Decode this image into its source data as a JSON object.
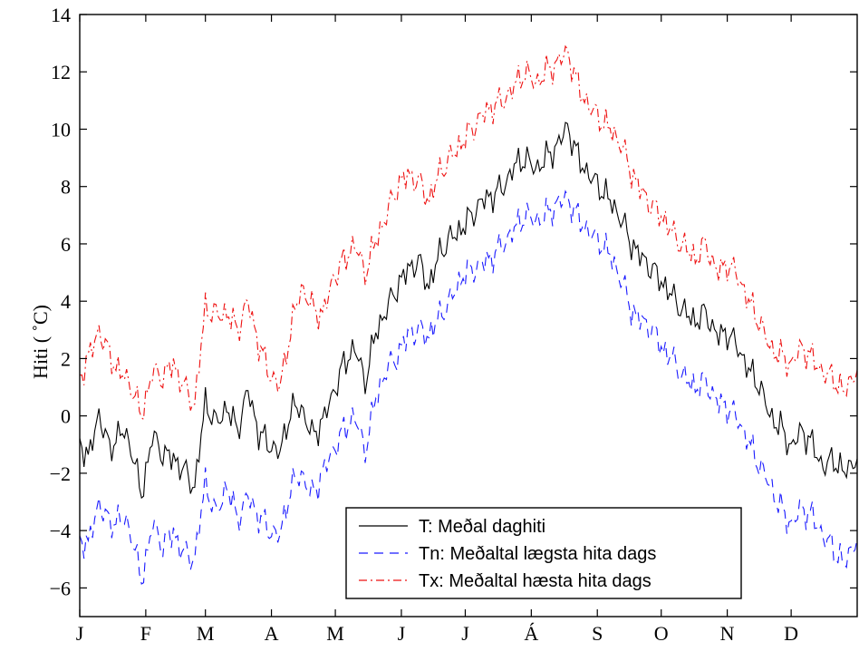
{
  "chart_data": {
    "type": "line",
    "title": "",
    "xlabel": "",
    "ylabel": "Hiti ( ˚C)",
    "ylim": [
      -7,
      14
    ],
    "yticks": [
      -6,
      -4,
      -2,
      0,
      2,
      4,
      6,
      8,
      10,
      12,
      14
    ],
    "ytick_labels": [
      "−6",
      "−4",
      "−2",
      "0",
      "2",
      "4",
      "6",
      "8",
      "10",
      "12",
      "14"
    ],
    "xlim": [
      1,
      366
    ],
    "x_ticks": [
      {
        "x": 1,
        "label": "J"
      },
      {
        "x": 32,
        "label": "F"
      },
      {
        "x": 60,
        "label": "M"
      },
      {
        "x": 91,
        "label": "A"
      },
      {
        "x": 121,
        "label": "M"
      },
      {
        "x": 152,
        "label": "J"
      },
      {
        "x": 182,
        "label": "J"
      },
      {
        "x": 213,
        "label": "Á"
      },
      {
        "x": 244,
        "label": "S"
      },
      {
        "x": 274,
        "label": "O"
      },
      {
        "x": 305,
        "label": "N"
      },
      {
        "x": 335,
        "label": "D"
      }
    ],
    "grid": false,
    "legend_position": "bottom-right",
    "series_anchor_days": [
      1,
      5,
      10,
      15,
      20,
      25,
      30,
      35,
      40,
      45,
      50,
      55,
      60,
      65,
      70,
      75,
      80,
      85,
      90,
      95,
      100,
      105,
      110,
      115,
      120,
      125,
      130,
      135,
      140,
      145,
      150,
      155,
      160,
      165,
      170,
      175,
      180,
      185,
      190,
      195,
      200,
      205,
      210,
      215,
      220,
      225,
      230,
      235,
      240,
      245,
      250,
      255,
      260,
      265,
      270,
      275,
      280,
      285,
      290,
      295,
      300,
      305,
      310,
      315,
      320,
      325,
      330,
      335,
      340,
      345,
      350,
      355,
      360,
      366
    ],
    "series": [
      {
        "name": "T: Meðal daghiti",
        "color": "#000000",
        "dash": "solid",
        "values": [
          -0.8,
          -1.5,
          0.1,
          -1.2,
          -0.5,
          -1.0,
          -2.8,
          -0.7,
          -1.3,
          -1.5,
          -1.9,
          -2.5,
          0.5,
          -0.3,
          0.3,
          -0.5,
          0.9,
          -0.6,
          -1.0,
          -1.3,
          0.2,
          0.3,
          -0.7,
          -0.2,
          0.8,
          1.8,
          2.4,
          1.2,
          2.9,
          3.7,
          4.5,
          5.1,
          5.4,
          4.5,
          5.7,
          6.2,
          6.5,
          7.0,
          7.5,
          7.7,
          8.0,
          8.7,
          9.0,
          8.6,
          9.0,
          9.4,
          10.1,
          9.0,
          8.4,
          8.0,
          7.5,
          6.9,
          6.0,
          5.5,
          5.1,
          4.6,
          4.1,
          3.6,
          3.3,
          3.6,
          2.8,
          2.9,
          2.4,
          1.6,
          1.1,
          0.0,
          -0.4,
          -1.1,
          -0.5,
          -1.0,
          -1.8,
          -1.5,
          -2.0,
          -1.4
        ]
      },
      {
        "name": "Tn: Meðaltal lægsta hita dags",
        "color": "#1a1aff",
        "dash": "dashed",
        "values": [
          -4.2,
          -4.5,
          -3.0,
          -3.8,
          -3.5,
          -4.0,
          -5.8,
          -3.8,
          -4.5,
          -4.1,
          -4.8,
          -5.0,
          -2.3,
          -3.5,
          -2.4,
          -3.6,
          -2.8,
          -3.5,
          -4.0,
          -4.2,
          -2.5,
          -2.0,
          -2.8,
          -2.0,
          -1.2,
          -0.5,
          0.0,
          -1.2,
          0.6,
          1.6,
          2.1,
          2.8,
          3.0,
          2.8,
          3.5,
          4.0,
          4.8,
          5.1,
          5.3,
          5.6,
          6.0,
          6.5,
          7.0,
          6.8,
          7.0,
          7.4,
          7.6,
          6.9,
          6.4,
          6.1,
          5.6,
          4.8,
          3.7,
          3.3,
          3.0,
          2.3,
          1.9,
          1.3,
          1.0,
          1.2,
          0.5,
          0.3,
          -0.1,
          -0.9,
          -1.7,
          -2.4,
          -3.2,
          -3.8,
          -3.2,
          -3.5,
          -4.2,
          -4.6,
          -5.2,
          -4.2
        ]
      },
      {
        "name": "Tx: Meðaltal hæsta hita dags",
        "color": "#ee1111",
        "dash": "dashdot",
        "values": [
          1.4,
          2.0,
          3.0,
          2.1,
          1.5,
          1.1,
          0.0,
          1.5,
          1.4,
          1.8,
          1.0,
          0.4,
          3.8,
          3.5,
          3.6,
          3.0,
          4.0,
          2.5,
          1.5,
          1.0,
          3.0,
          4.5,
          3.8,
          3.5,
          4.8,
          5.4,
          6.0,
          5.0,
          6.1,
          7.0,
          8.0,
          8.4,
          8.2,
          7.5,
          8.5,
          9.0,
          9.5,
          10.0,
          10.5,
          10.8,
          11.0,
          11.5,
          12.0,
          11.6,
          12.0,
          12.3,
          12.7,
          11.5,
          10.8,
          10.4,
          10.0,
          9.5,
          8.5,
          7.8,
          7.3,
          6.9,
          6.3,
          5.9,
          5.5,
          6.0,
          5.0,
          5.3,
          4.9,
          4.0,
          3.3,
          2.4,
          2.1,
          1.8,
          2.4,
          2.0,
          1.5,
          1.3,
          0.8,
          1.7
        ]
      }
    ]
  }
}
